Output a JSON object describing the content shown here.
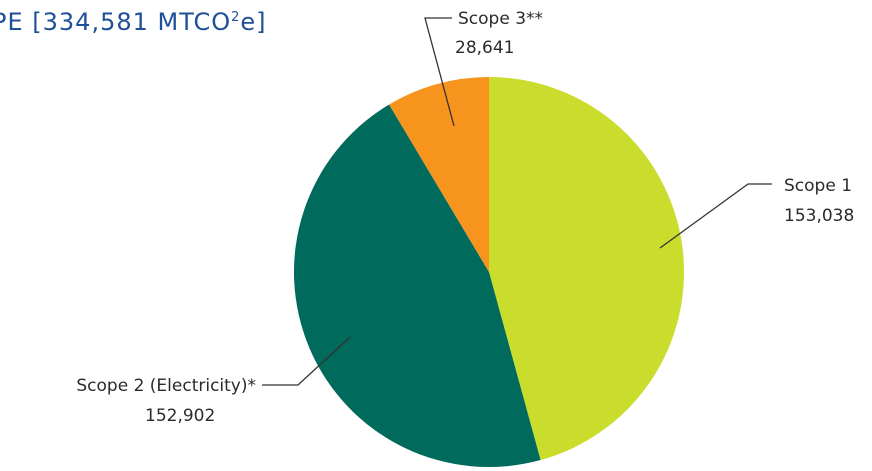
{
  "chart_data": {
    "type": "pie",
    "title": {
      "prefix": "PE [334,581 MTCO",
      "superscript": "2",
      "suffix": "e]"
    },
    "total": 334581,
    "unit": "MTCO2e",
    "start_angle_deg": 0,
    "direction": "clockwise",
    "legend": "none",
    "slices": [
      {
        "name": "Scope 1",
        "value_label": "153,038",
        "value": 153038,
        "color": "#cadc2c"
      },
      {
        "name": "Scope 2 (Electricity)*",
        "value_label": "152,902",
        "value": 152902,
        "color": "#006b5c"
      },
      {
        "name": "Scope 3**",
        "value_label": "28,641",
        "value": 28641,
        "color": "#f7941d"
      }
    ]
  }
}
